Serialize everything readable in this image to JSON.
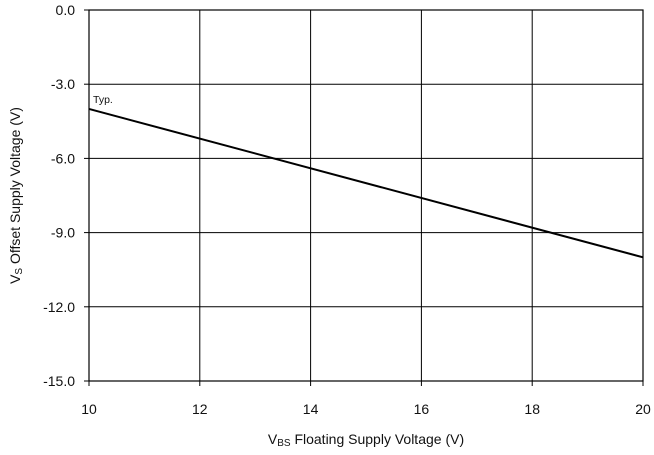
{
  "chart_data": {
    "type": "line",
    "x": [
      10,
      20
    ],
    "series": [
      {
        "values": [
          -4.0,
          -10.0
        ]
      }
    ],
    "annotation": "Typ.",
    "xlabel": {
      "main": "V",
      "sub": "BS",
      "rest": " Floating Supply Voltage (V)"
    },
    "ylabel": {
      "main": "V",
      "sub": "S",
      "rest": " Offset Supply Voltage (V)"
    },
    "xlim": [
      10,
      20
    ],
    "ylim": [
      -15,
      0
    ],
    "xticks": [
      10,
      12,
      14,
      16,
      18,
      20
    ],
    "yticks": [
      0.0,
      -3.0,
      -6.0,
      -9.0,
      -12.0,
      -15.0
    ],
    "xtick_labels": [
      "10",
      "12",
      "14",
      "16",
      "18",
      "20"
    ],
    "ytick_labels": [
      "0.0",
      "-3.0",
      "-6.0",
      "-9.0",
      "-12.0",
      "-15.0"
    ],
    "grid": true,
    "line_color": "#000000",
    "grid_color": "#000000"
  }
}
